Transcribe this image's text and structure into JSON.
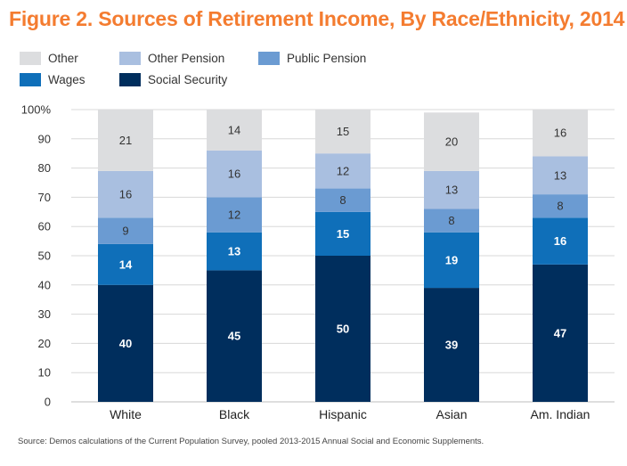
{
  "chart_data": {
    "type": "bar",
    "stacked": true,
    "title": "Figure 2. Sources of Retirement Income, By Race/Ethnicity, 2014",
    "categories": [
      "White",
      "Black",
      "Hispanic",
      "Asian",
      "Am. Indian"
    ],
    "series": [
      {
        "name": "Social Security",
        "color": "#002e5d",
        "label_color": "#ffffff",
        "values": [
          40,
          45,
          50,
          39,
          47
        ]
      },
      {
        "name": "Wages",
        "color": "#0f6fb9",
        "label_color": "#ffffff",
        "values": [
          14,
          13,
          15,
          19,
          16
        ]
      },
      {
        "name": "Public Pension",
        "color": "#6b9bd2",
        "label_color": "#333333",
        "values": [
          9,
          12,
          8,
          8,
          8
        ]
      },
      {
        "name": "Other Pension",
        "color": "#a9bfe0",
        "label_color": "#333333",
        "values": [
          16,
          16,
          12,
          13,
          13
        ]
      },
      {
        "name": "Other",
        "color": "#dcdddf",
        "label_color": "#333333",
        "values": [
          21,
          14,
          15,
          20,
          16
        ]
      }
    ],
    "legend_order": [
      "Other",
      "Other Pension",
      "Public Pension",
      "Wages",
      "Social Security"
    ],
    "legend_placement": "top-left",
    "ylim": [
      0,
      100
    ],
    "yticks": [
      0,
      10,
      20,
      30,
      40,
      50,
      60,
      70,
      80,
      90,
      100
    ],
    "ytick_labels": [
      "0",
      "10",
      "20",
      "30",
      "40",
      "50",
      "60",
      "70",
      "80",
      "90",
      "100%"
    ],
    "grid": true,
    "xlabel": "",
    "ylabel": "",
    "source": "Source: Demos calculations of the Current Population Survey, pooled 2013-2015 Annual Social and Economic Supplements."
  }
}
